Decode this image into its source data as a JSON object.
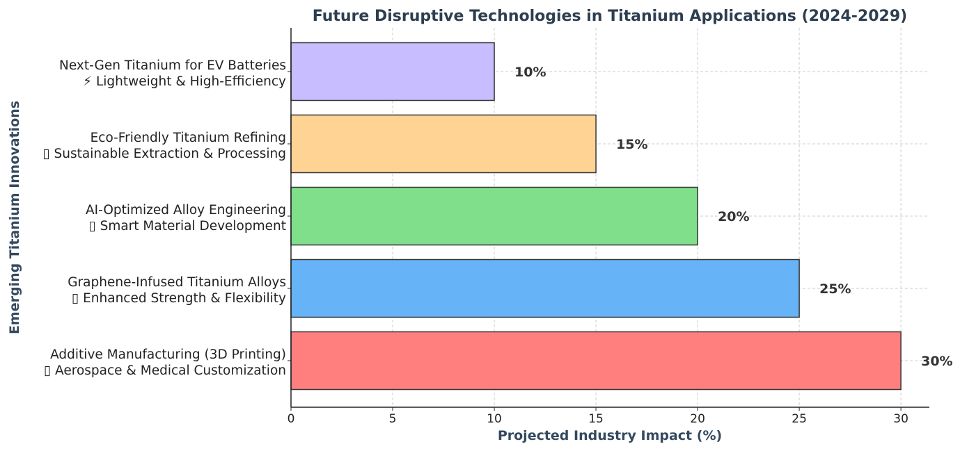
{
  "chart_data": {
    "type": "bar",
    "orientation": "horizontal",
    "title": "Future Disruptive Technologies in Titanium Applications (2024-2029)",
    "xlabel": "Projected Industry Impact (%)",
    "ylabel": "Emerging Titanium Innovations",
    "xlim": [
      0,
      31.4
    ],
    "xticks": [
      0,
      5,
      10,
      15,
      20,
      25,
      30
    ],
    "grid": true,
    "categories": [
      {
        "line1": "Additive Manufacturing (3D Printing)",
        "line2": "▯ Aerospace & Medical Customization"
      },
      {
        "line1": "Graphene-Infused Titanium Alloys",
        "line2": "▯ Enhanced Strength & Flexibility"
      },
      {
        "line1": "AI-Optimized Alloy Engineering",
        "line2": "▯ Smart Material Development"
      },
      {
        "line1": "Eco-Friendly Titanium Refining",
        "line2": "▯ Sustainable Extraction & Processing"
      },
      {
        "line1": "Next-Gen Titanium for EV Batteries",
        "line2": "⚡ Lightweight & High-Efficiency"
      }
    ],
    "values": [
      30,
      25,
      20,
      15,
      10
    ],
    "value_labels": [
      "30%",
      "25%",
      "20%",
      "15%",
      "10%"
    ],
    "colors": [
      "#ff7f7f",
      "#66b3f7",
      "#7fdf8b",
      "#ffd394",
      "#c7bdff"
    ]
  }
}
